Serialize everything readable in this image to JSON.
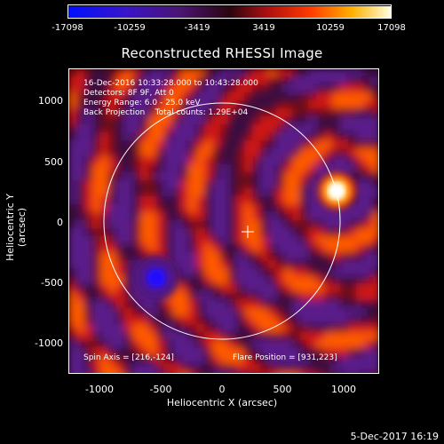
{
  "colorbar": {
    "ticks": [
      "-17098",
      "-10259",
      "-3419",
      "3419",
      "10259",
      "17098"
    ]
  },
  "plot": {
    "title": "Reconstructed RHESSI Image",
    "info_lines": [
      "16-Dec-2016 10:33:28.000 to 10:43:28.000",
      "Detectors: 8F 9F, Att 0",
      "Energy Range: 6.0 - 25.0 keV",
      "Back Projection    Total counts: 1.29E+04"
    ],
    "spin_axis": "Spin Axis = [216,-124]",
    "flare_position": "Flare Position = [931,223]",
    "xlabel": "Heliocentric X (arcsec)",
    "ylabel": "Heliocentric Y (arcsec)",
    "xticks": [
      "-1000",
      "-500",
      "0",
      "500",
      "1000"
    ],
    "yticks": [
      "1000",
      "500",
      "0",
      "-500",
      "-1000"
    ],
    "colors": {
      "background": "#000000",
      "limb_circle": "#ffffff"
    }
  },
  "footer": {
    "timestamp": "5-Dec-2017 16:19"
  }
}
